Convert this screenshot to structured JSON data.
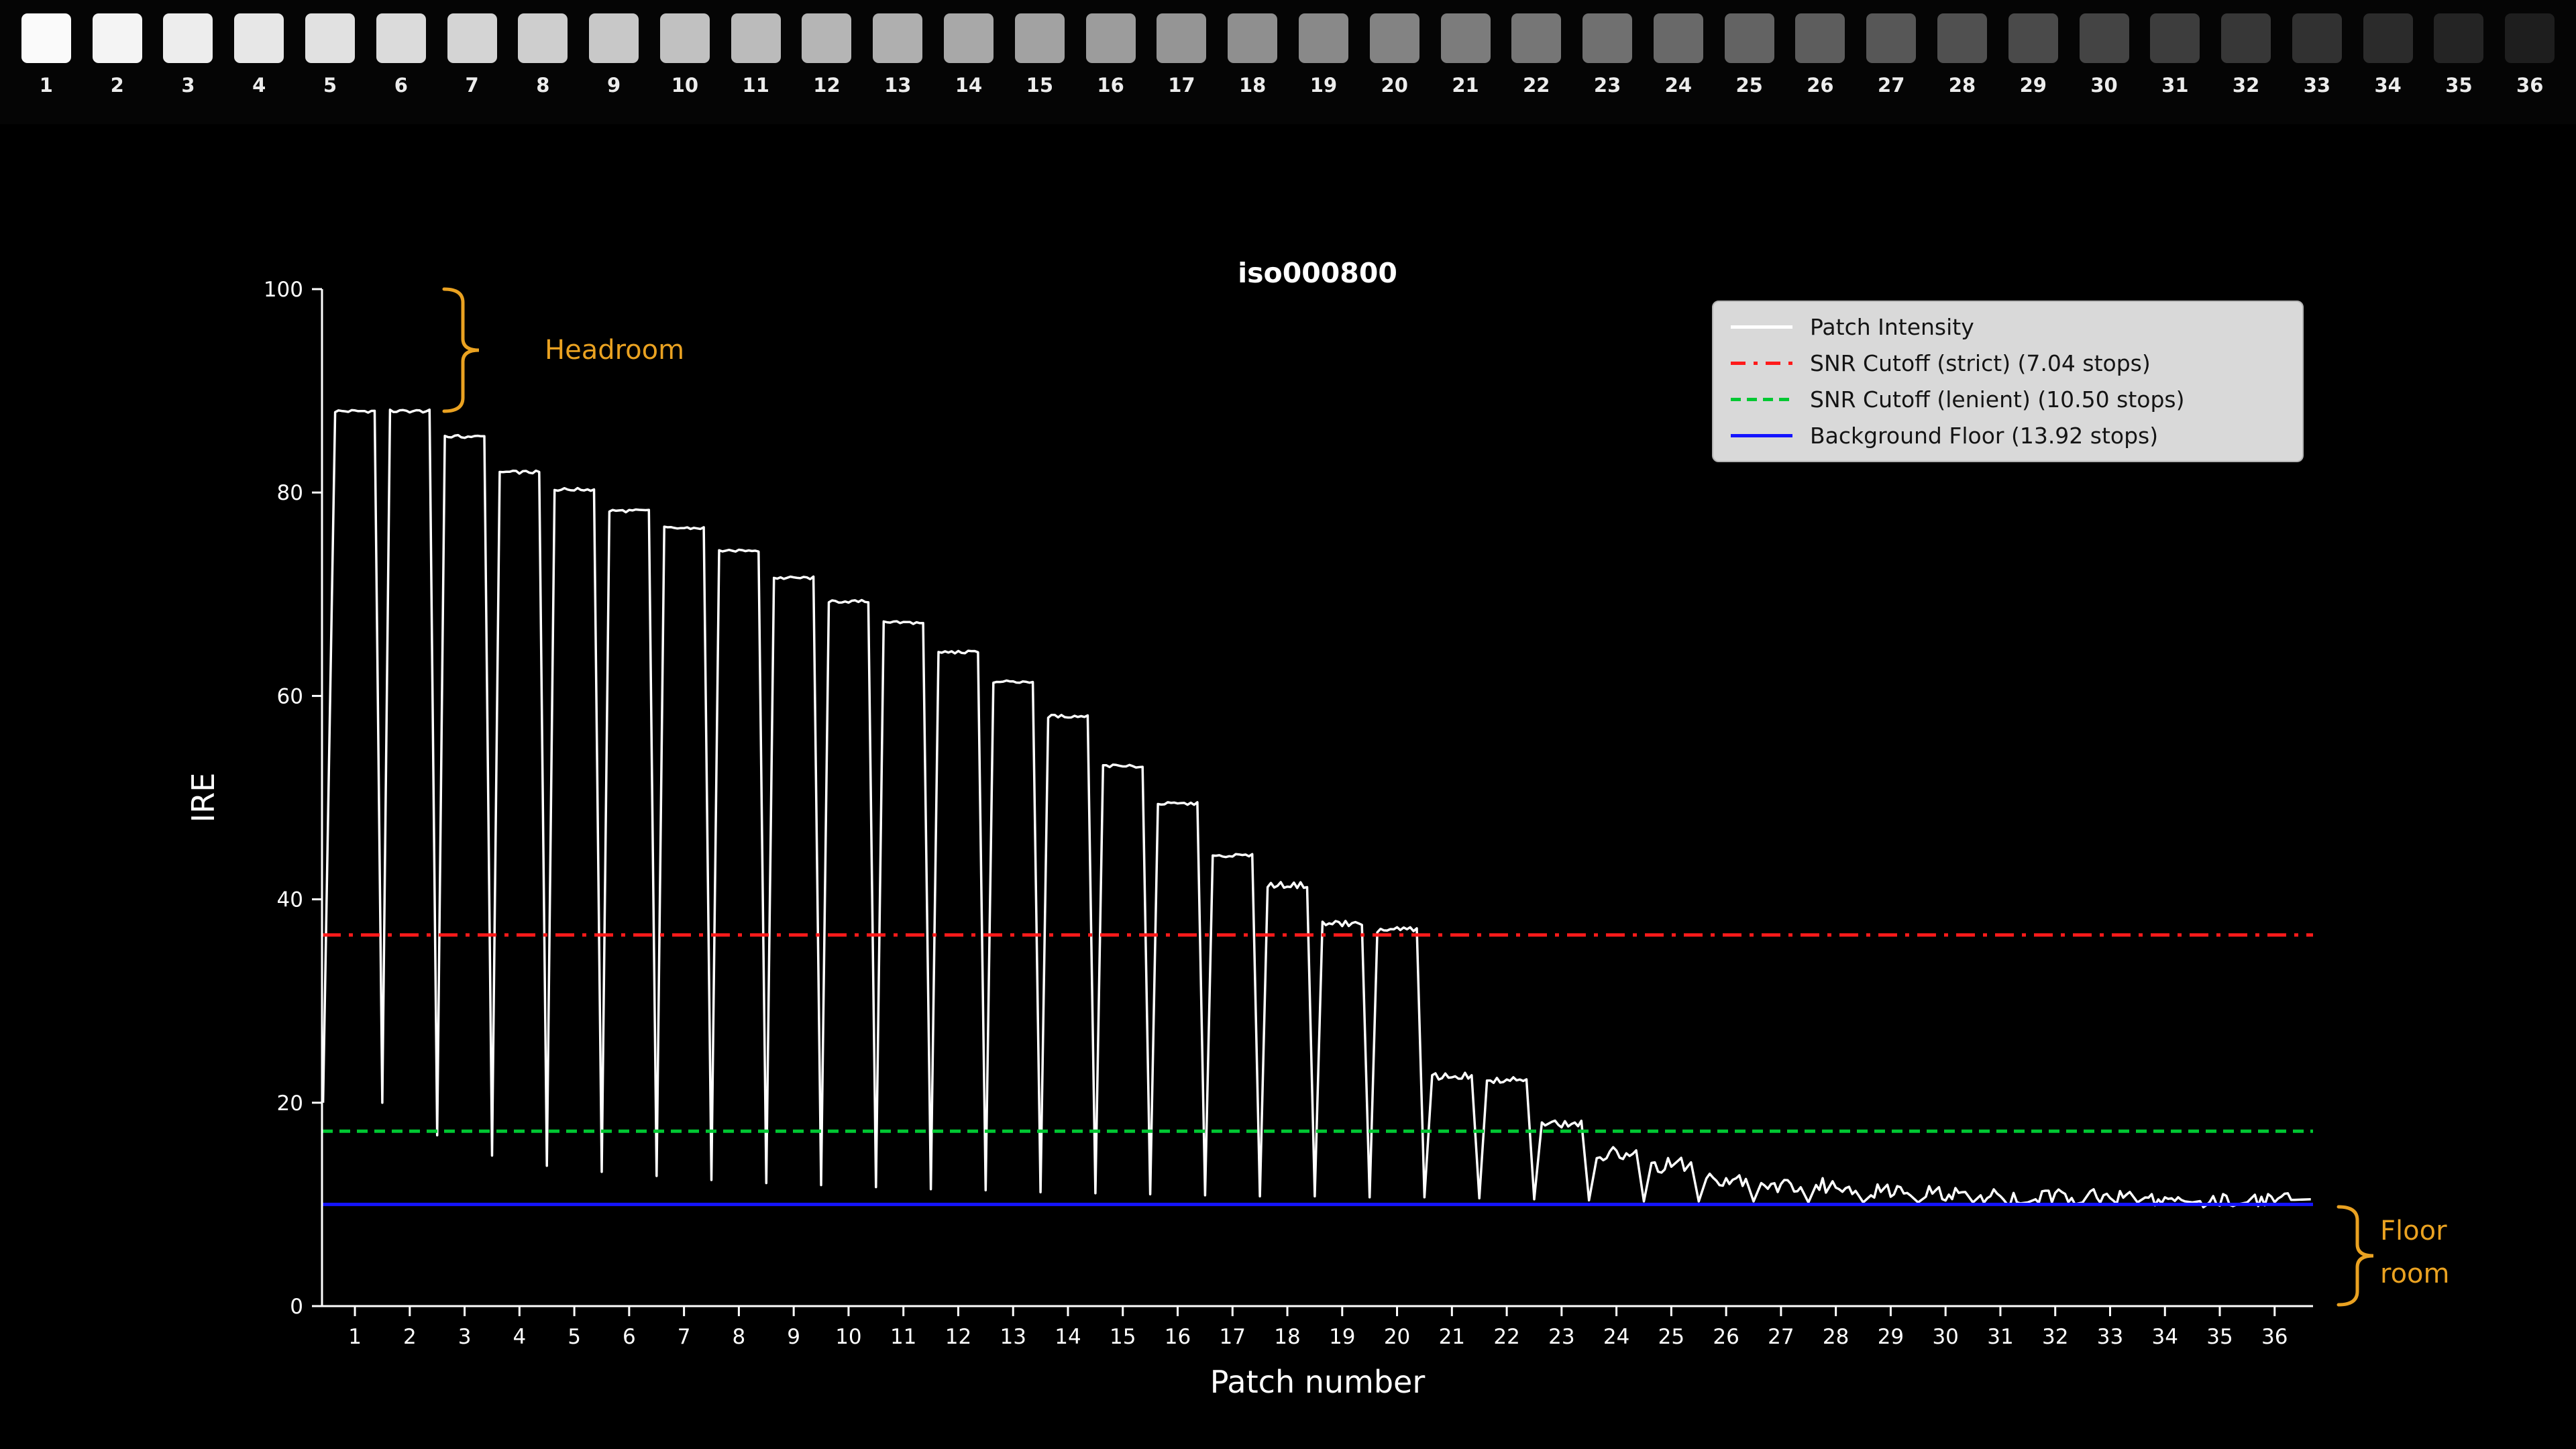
{
  "strip": {
    "patch_labels": [
      "1",
      "2",
      "3",
      "4",
      "5",
      "6",
      "7",
      "8",
      "9",
      "10",
      "11",
      "12",
      "13",
      "14",
      "15",
      "16",
      "17",
      "18",
      "19",
      "20",
      "21",
      "22",
      "23",
      "24",
      "25",
      "26",
      "27",
      "28",
      "29",
      "30",
      "31",
      "32",
      "33",
      "34",
      "35",
      "36"
    ],
    "shade_first": 250,
    "shade_last": 30
  },
  "chart_data": {
    "type": "line",
    "title": "iso000800",
    "xlabel": "Patch number",
    "ylabel": "IRE",
    "xlim": [
      0.4,
      36.7
    ],
    "ylim": [
      0,
      100
    ],
    "x_ticks": [
      1,
      2,
      3,
      4,
      5,
      6,
      7,
      8,
      9,
      10,
      11,
      12,
      13,
      14,
      15,
      16,
      17,
      18,
      19,
      20,
      21,
      22,
      23,
      24,
      25,
      26,
      27,
      28,
      29,
      30,
      31,
      32,
      33,
      34,
      35,
      36
    ],
    "y_ticks": [
      0,
      20,
      40,
      60,
      80,
      100
    ],
    "grid": false,
    "legend_position": "upper right",
    "series": [
      {
        "name": "Patch Intensity",
        "color": "#ffffff",
        "style": "solid",
        "role": "waveform",
        "start_value": 20,
        "patch_tops": [
          88,
          88,
          85.5,
          82,
          80.3,
          78.2,
          76.5,
          74.3,
          71.6,
          69.3,
          67.2,
          64.3,
          61.4,
          58,
          53.1,
          49.4,
          44.3,
          41.4,
          37.6,
          37,
          22.6,
          22.3,
          17.9,
          14.9,
          13.9,
          12.6,
          11.8,
          11.8,
          11.3,
          11.1,
          10.8,
          10.7,
          10.7,
          10.5,
          10.5,
          10.5
        ],
        "valleys": [
          20,
          16.8,
          14.8,
          13.8,
          13.2,
          12.8,
          12.4,
          12.1,
          11.9,
          11.7,
          11.5,
          11.4,
          11.2,
          11.1,
          11,
          10.9,
          10.8,
          10.8,
          10.7,
          10.7,
          10.6,
          10.5,
          10.4,
          10.3,
          10.3,
          10.3,
          10.2,
          10.2,
          10.2,
          10.2,
          10.2,
          10.2,
          10.2,
          10.2,
          10.2
        ]
      },
      {
        "name": "SNR Cutoff (strict) (7.04 stops)",
        "color": "#ff1a1a",
        "style": "dashdot",
        "role": "hline",
        "y": 36.5
      },
      {
        "name": "SNR Cutoff (lenient) (10.50 stops)",
        "color": "#00c832",
        "style": "dashed",
        "role": "hline",
        "y": 17.2
      },
      {
        "name": "Background Floor (13.92 stops)",
        "color": "#1414ff",
        "style": "solid",
        "role": "hline",
        "y": 10.0
      }
    ],
    "annotations": {
      "headroom": {
        "text": "Headroom",
        "color": "#eaa221",
        "y_from": 88,
        "y_to": 100
      },
      "floor": {
        "line1": "Floor",
        "line2": "room",
        "color": "#eaa221",
        "y_from": 0,
        "y_to": 10
      }
    }
  }
}
